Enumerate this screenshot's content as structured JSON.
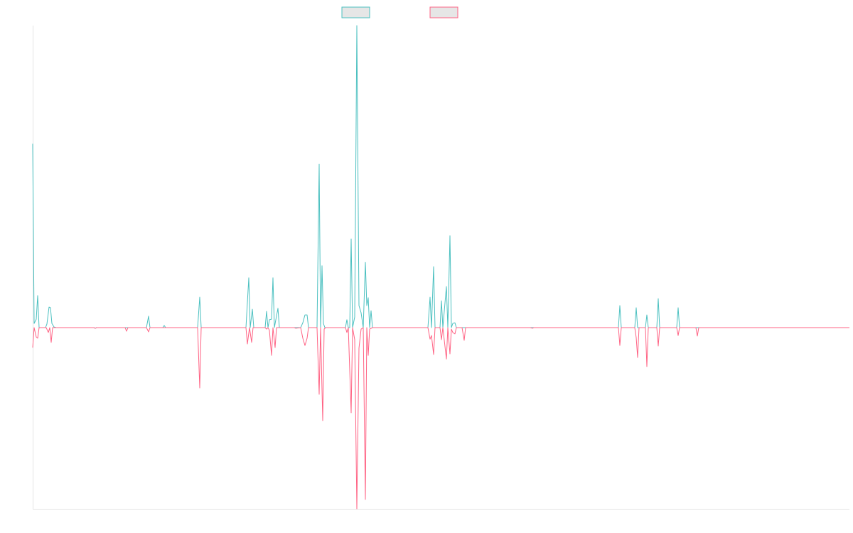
{
  "chart_data": {
    "type": "line",
    "title": "",
    "xlabel": "",
    "ylabel": "",
    "xlim": [
      0,
      1149
    ],
    "ylim": [
      -0.6,
      1.0
    ],
    "grid": false,
    "legend": "top-center",
    "series": [
      {
        "name": "",
        "color": "#4bc0c0",
        "points": [
          [
            0,
            0.609
          ],
          [
            2,
            0.014
          ],
          [
            5,
            0.028
          ],
          [
            7,
            0.106
          ],
          [
            9,
            0
          ],
          [
            18,
            0
          ],
          [
            20,
            0.012
          ],
          [
            23,
            0.068
          ],
          [
            25,
            0.066
          ],
          [
            27,
            0.014
          ],
          [
            30,
            0.002
          ],
          [
            33,
            0
          ],
          [
            86,
            0
          ],
          [
            88,
            -0.002
          ],
          [
            90,
            0
          ],
          [
            160,
            0
          ],
          [
            163,
            0.038
          ],
          [
            165,
            0
          ],
          [
            183,
            0
          ],
          [
            185,
            0.007
          ],
          [
            187,
            0
          ],
          [
            232,
            0
          ],
          [
            235,
            0.101
          ],
          [
            237,
            0
          ],
          [
            300,
            0
          ],
          [
            304,
            0.165
          ],
          [
            306,
            0
          ],
          [
            309,
            0.061
          ],
          [
            311,
            0
          ],
          [
            327,
            0
          ],
          [
            329,
            0.054
          ],
          [
            331,
            0
          ],
          [
            333,
            0.026
          ],
          [
            336,
            0.028
          ],
          [
            338,
            0.165
          ],
          [
            340,
            0
          ],
          [
            345,
            0.064
          ],
          [
            347,
            0
          ],
          [
            377,
            0
          ],
          [
            380,
            0.016
          ],
          [
            383,
            0.042
          ],
          [
            386,
            0.042
          ],
          [
            388,
            0
          ],
          [
            400,
            0
          ],
          [
            403,
            0.541
          ],
          [
            405,
            0
          ],
          [
            407,
            0.205
          ],
          [
            409,
            0.014
          ],
          [
            411,
            0
          ],
          [
            440,
            0
          ],
          [
            442,
            0.026
          ],
          [
            444,
            0
          ],
          [
            446,
            0
          ],
          [
            448,
            0.294
          ],
          [
            450,
            0
          ],
          [
            453,
            0.035
          ],
          [
            456,
            1.0
          ],
          [
            459,
            0.073
          ],
          [
            462,
            0.049
          ],
          [
            465,
            0
          ],
          [
            468,
            0.216
          ],
          [
            470,
            0.073
          ],
          [
            472,
            0.099
          ],
          [
            474,
            0
          ],
          [
            476,
            0.056
          ],
          [
            478,
            0
          ],
          [
            556,
            0
          ],
          [
            559,
            0.101
          ],
          [
            561,
            0
          ],
          [
            564,
            0.202
          ],
          [
            566,
            0
          ],
          [
            573,
            0
          ],
          [
            575,
            0.089
          ],
          [
            577,
            0
          ],
          [
            582,
            0.136
          ],
          [
            584,
            0
          ],
          [
            587,
            0.304
          ],
          [
            589,
            0
          ],
          [
            591,
            0.014
          ],
          [
            594,
            0.016
          ],
          [
            596,
            0
          ],
          [
            824,
            0
          ],
          [
            826,
            0.073
          ],
          [
            828,
            0
          ],
          [
            847,
            0
          ],
          [
            849,
            0.066
          ],
          [
            851,
            0
          ],
          [
            862,
            0
          ],
          [
            864,
            0.042
          ],
          [
            866,
            0
          ],
          [
            878,
            0
          ],
          [
            880,
            0.096
          ],
          [
            882,
            0
          ],
          [
            906,
            0
          ],
          [
            908,
            0.066
          ],
          [
            910,
            0
          ],
          [
            1149,
            0
          ]
        ]
      },
      {
        "name": "",
        "color": "#ff6384",
        "points": [
          [
            0,
            -0.066
          ],
          [
            2,
            0
          ],
          [
            5,
            -0.031
          ],
          [
            7,
            -0.035
          ],
          [
            9,
            0
          ],
          [
            19,
            0
          ],
          [
            22,
            -0.016
          ],
          [
            24,
            0
          ],
          [
            26,
            -0.049
          ],
          [
            28,
            0
          ],
          [
            86,
            0
          ],
          [
            88,
            -0.002
          ],
          [
            90,
            0
          ],
          [
            130,
            0
          ],
          [
            132,
            -0.012
          ],
          [
            134,
            0
          ],
          [
            160,
            0
          ],
          [
            163,
            -0.014
          ],
          [
            165,
            0
          ],
          [
            232,
            0
          ],
          [
            235,
            -0.2
          ],
          [
            237,
            0
          ],
          [
            300,
            0
          ],
          [
            302,
            -0.054
          ],
          [
            305,
            0
          ],
          [
            308,
            -0.049
          ],
          [
            310,
            0
          ],
          [
            327,
            0
          ],
          [
            329,
            -0.005
          ],
          [
            331,
            0
          ],
          [
            333,
            -0.009
          ],
          [
            336,
            -0.092
          ],
          [
            338,
            0
          ],
          [
            341,
            -0.066
          ],
          [
            343,
            0
          ],
          [
            368,
            0
          ],
          [
            370,
            -0.002
          ],
          [
            377,
            0
          ],
          [
            380,
            -0.035
          ],
          [
            383,
            -0.059
          ],
          [
            386,
            -0.035
          ],
          [
            388,
            0
          ],
          [
            400,
            0
          ],
          [
            403,
            -0.221
          ],
          [
            405,
            0
          ],
          [
            408,
            -0.308
          ],
          [
            410,
            -0.005
          ],
          [
            412,
            0
          ],
          [
            440,
            0
          ],
          [
            442,
            -0.016
          ],
          [
            444,
            0
          ],
          [
            448,
            -0.282
          ],
          [
            450,
            0
          ],
          [
            453,
            -0.04
          ],
          [
            456,
            -0.6
          ],
          [
            459,
            -0.068
          ],
          [
            462,
            -0.005
          ],
          [
            465,
            0
          ],
          [
            468,
            -0.569
          ],
          [
            470,
            0
          ],
          [
            472,
            -0.092
          ],
          [
            474,
            -0.005
          ],
          [
            478,
            0
          ],
          [
            556,
            0
          ],
          [
            559,
            -0.038
          ],
          [
            561,
            -0.026
          ],
          [
            564,
            -0.089
          ],
          [
            566,
            0
          ],
          [
            573,
            0
          ],
          [
            575,
            -0.04
          ],
          [
            577,
            0
          ],
          [
            582,
            -0.104
          ],
          [
            584,
            0
          ],
          [
            587,
            -0.087
          ],
          [
            589,
            -0.005
          ],
          [
            591,
            -0.016
          ],
          [
            594,
            -0.021
          ],
          [
            596,
            0
          ],
          [
            604,
            0
          ],
          [
            607,
            -0.042
          ],
          [
            609,
            0
          ],
          [
            700,
            0
          ],
          [
            703,
            -0.002
          ],
          [
            705,
            0
          ],
          [
            824,
            0
          ],
          [
            826,
            -0.059
          ],
          [
            828,
            0
          ],
          [
            847,
            0
          ],
          [
            849,
            -0.033
          ],
          [
            851,
            -0.099
          ],
          [
            853,
            0
          ],
          [
            862,
            0
          ],
          [
            864,
            -0.129
          ],
          [
            866,
            0
          ],
          [
            878,
            0
          ],
          [
            880,
            -0.061
          ],
          [
            882,
            0
          ],
          [
            906,
            0
          ],
          [
            908,
            -0.026
          ],
          [
            910,
            0
          ],
          [
            933,
            0
          ],
          [
            935,
            -0.028
          ],
          [
            937,
            0
          ],
          [
            1149,
            0
          ]
        ]
      }
    ]
  }
}
